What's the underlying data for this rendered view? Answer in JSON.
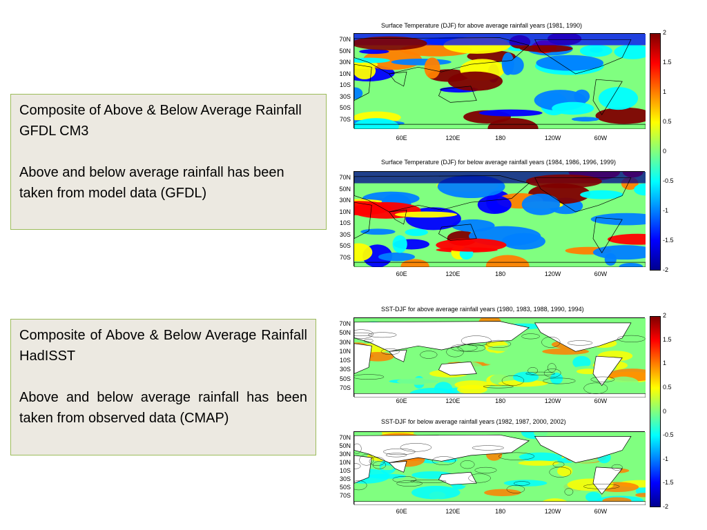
{
  "left_boxes": [
    {
      "heading": "Composite of Above & Below Average Rainfall GFDL CM3",
      "body": "Above and below average rainfall has been taken from model data (GFDL)"
    },
    {
      "heading": "Composite of Above & Below Average Rainfall HadISST",
      "body": "Above and below average rainfall has been taken from observed data (CMAP)"
    }
  ],
  "maps": [
    {
      "title": "Surface Temperature (DJF) for above average rainfall years (1981, 1990)"
    },
    {
      "title": "Surface Temperature (DJF) for below average rainfall years (1984, 1986, 1996, 1999)"
    },
    {
      "title": "SST-DJF for above average rainfall years (1980, 1983, 1988, 1990, 1994)"
    },
    {
      "title": "SST-DJF for below average rainfall years (1982, 1987, 2000, 2002)"
    }
  ],
  "lat_labels": [
    "70N",
    "50N",
    "30N",
    "10N",
    "10S",
    "30S",
    "50S",
    "70S"
  ],
  "lon_labels": [
    "60E",
    "120E",
    "180",
    "120W",
    "60W"
  ],
  "colorbar_labels": [
    "2",
    "1.5",
    "1",
    "0.5",
    "0",
    "-0.5",
    "-1",
    "-1.5",
    "-2"
  ],
  "colors": {
    "box_background": "#ece9e1",
    "box_border": "#9bbb59",
    "colormap": [
      "#00008f",
      "#0000ff",
      "#0080ff",
      "#00ffff",
      "#80ff80",
      "#ffff00",
      "#ff8000",
      "#ff0000",
      "#800000"
    ]
  }
}
